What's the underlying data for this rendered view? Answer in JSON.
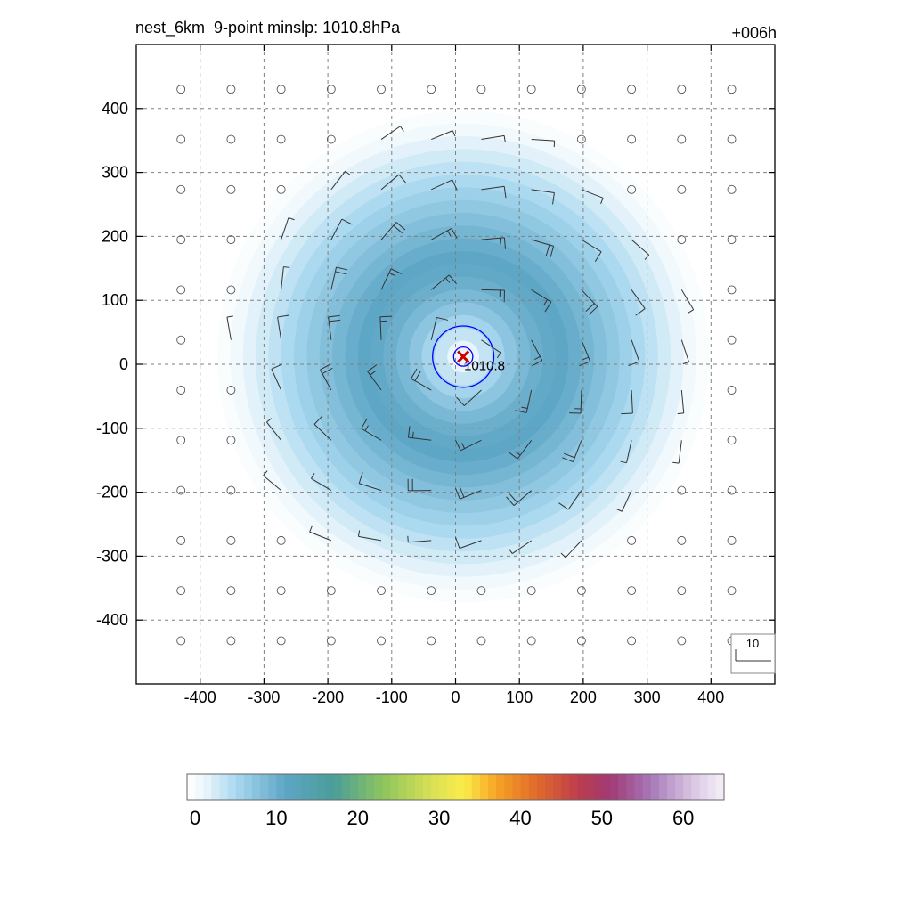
{
  "chart_data": {
    "type": "heatmap",
    "title_left": "nest_6km  9-point minslp: 1010.8hPa",
    "title_right": "+006h",
    "x_ticks": [
      -400,
      -300,
      -200,
      -100,
      0,
      100,
      200,
      300,
      400
    ],
    "y_ticks": [
      400,
      300,
      200,
      100,
      0,
      -100,
      -200,
      -300,
      -400
    ],
    "xlim": [
      -500,
      500
    ],
    "ylim": [
      -500,
      500
    ],
    "grid": true,
    "center": {
      "x": 12,
      "y": 12,
      "label": "1010.8",
      "marker_color": "#cc0000"
    },
    "pressure_contours_km": [
      15,
      48
    ],
    "contour_color": "#0000ff",
    "wind_field": {
      "outer_radius_km": 385,
      "peak_radius_km": 160,
      "peak_value": 12
    },
    "barb_reference": {
      "label": "10"
    },
    "colorbar": {
      "range": [
        0,
        66
      ],
      "tick_values": [
        0,
        10,
        20,
        30,
        40,
        50,
        60
      ],
      "tick_labels": [
        "0",
        "10",
        "20",
        "30",
        "40",
        "50",
        "60"
      ],
      "anchor_colors": [
        {
          "v": 0,
          "c": "#ffffff"
        },
        {
          "v": 2,
          "c": "#eef7fc"
        },
        {
          "v": 6,
          "c": "#a9d8ef"
        },
        {
          "v": 12,
          "c": "#5ea6c6"
        },
        {
          "v": 18,
          "c": "#4a9d9a"
        },
        {
          "v": 24,
          "c": "#8cc45e"
        },
        {
          "v": 30,
          "c": "#d8e055"
        },
        {
          "v": 34,
          "c": "#fbec4a"
        },
        {
          "v": 38,
          "c": "#f6a424"
        },
        {
          "v": 43,
          "c": "#e06a2c"
        },
        {
          "v": 48,
          "c": "#bd3d4b"
        },
        {
          "v": 52,
          "c": "#a03a74"
        },
        {
          "v": 57,
          "c": "#a778b8"
        },
        {
          "v": 62,
          "c": "#d8c4e2"
        },
        {
          "v": 66,
          "c": "#f6f0f9"
        }
      ]
    }
  }
}
